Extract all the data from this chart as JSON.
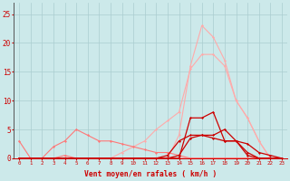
{
  "xlabel": "Vent moyen/en rafales ( km/h )",
  "x": [
    0,
    1,
    2,
    3,
    4,
    5,
    6,
    7,
    8,
    9,
    10,
    11,
    12,
    13,
    14,
    15,
    16,
    17,
    18,
    19,
    20,
    21,
    22,
    23
  ],
  "ylim": [
    0,
    27
  ],
  "yticks": [
    0,
    5,
    10,
    15,
    20,
    25
  ],
  "background_color": "#cce9ea",
  "grid_color": "#aacdd0",
  "series": [
    {
      "y": [
        0,
        0,
        0,
        0,
        0,
        0,
        0,
        0,
        0,
        0,
        0,
        0,
        0,
        0,
        4,
        16,
        23,
        21,
        17,
        10,
        7,
        3,
        0,
        0
      ],
      "color": "#ffaaaa",
      "lw": 0.8,
      "marker": "D",
      "ms": 1.5
    },
    {
      "y": [
        0,
        0,
        0,
        0,
        0,
        0,
        0,
        0,
        0,
        1,
        2,
        3,
        5,
        6.5,
        8,
        15.5,
        18,
        18,
        16,
        10,
        7,
        3,
        0,
        0
      ],
      "color": "#ffaaaa",
      "lw": 0.8,
      "marker": "D",
      "ms": 1.5
    },
    {
      "y": [
        3,
        0,
        0,
        0,
        0.5,
        0,
        0,
        0,
        0,
        0,
        0,
        0,
        0,
        0,
        0,
        0,
        0,
        0,
        0,
        0,
        0,
        0,
        0,
        0
      ],
      "color": "#ff7777",
      "lw": 0.8,
      "marker": "D",
      "ms": 1.5
    },
    {
      "y": [
        0,
        0,
        0,
        2,
        3,
        5,
        4,
        3,
        3,
        2.5,
        2,
        1.5,
        1,
        1,
        0.5,
        0,
        0,
        0,
        0,
        0,
        0,
        0,
        0,
        0
      ],
      "color": "#ff7777",
      "lw": 0.8,
      "marker": "D",
      "ms": 1.5
    },
    {
      "y": [
        0,
        0,
        0,
        0,
        0,
        0,
        0,
        0,
        0,
        0,
        0,
        0,
        0,
        0.5,
        3,
        4,
        4,
        3.5,
        3,
        3,
        2.5,
        1,
        0.5,
        0
      ],
      "color": "#cc0000",
      "lw": 0.9,
      "marker": "D",
      "ms": 1.5
    },
    {
      "y": [
        0,
        0,
        0,
        0,
        0,
        0,
        0,
        0,
        0,
        0,
        0,
        0,
        0,
        0,
        0.5,
        3.5,
        4,
        4,
        5,
        3,
        0.5,
        0,
        0,
        0
      ],
      "color": "#cc0000",
      "lw": 0.9,
      "marker": "D",
      "ms": 1.5
    },
    {
      "y": [
        0,
        0,
        0,
        0,
        0,
        0,
        0,
        0,
        0,
        0,
        0,
        0,
        0,
        0,
        0,
        7,
        7,
        8,
        3,
        3,
        1,
        0,
        0,
        0
      ],
      "color": "#cc0000",
      "lw": 0.9,
      "marker": "D",
      "ms": 1.5
    }
  ]
}
